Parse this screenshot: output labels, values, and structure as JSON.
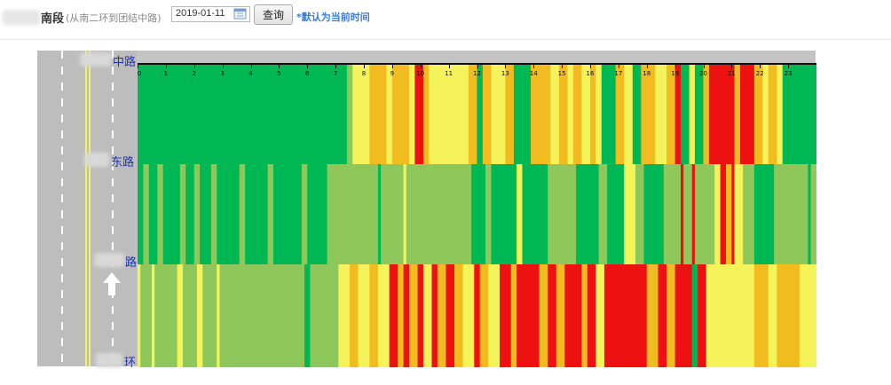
{
  "toolbar": {
    "title": "南段",
    "subtitle": "(从南二环到团结中路)",
    "date_value": "2019-01-11",
    "query_label": "查询",
    "hint": "*默认为当前时间"
  },
  "icons": {
    "calendar": "calendar-icon",
    "direction": "up-arrow-icon"
  },
  "road_labels": [
    "中路",
    "东路",
    "路",
    "环"
  ],
  "colors": {
    "dark_green": "#00b853",
    "light_green": "#8fc85a",
    "yellow": "#f4f45a",
    "orange": "#f0bc20",
    "red": "#ee1111"
  },
  "chart_data": {
    "type": "heatmap",
    "x_ticks": [
      "0",
      "1",
      "2",
      "3",
      "4",
      "5",
      "6",
      "7",
      "8",
      "9",
      "10",
      "11",
      "12",
      "13",
      "14",
      "15",
      "16",
      "17",
      "18",
      "19",
      "20",
      "21",
      "22",
      "23"
    ],
    "xlim": [
      0,
      24
    ],
    "rows": [
      {
        "segments": [
          [
            0,
            7.4,
            "dark_green"
          ],
          [
            7.4,
            7.6,
            "light_green"
          ],
          [
            7.6,
            8.2,
            "yellow"
          ],
          [
            8.2,
            8.8,
            "orange"
          ],
          [
            8.8,
            9.0,
            "yellow"
          ],
          [
            9.0,
            9.3,
            "orange"
          ],
          [
            9.3,
            9.6,
            "orange"
          ],
          [
            9.6,
            9.8,
            "yellow"
          ],
          [
            9.8,
            10.1,
            "red"
          ],
          [
            10.1,
            10.3,
            "orange"
          ],
          [
            10.3,
            11.7,
            "yellow"
          ],
          [
            11.7,
            12.0,
            "orange"
          ],
          [
            12.0,
            12.2,
            "dark_green"
          ],
          [
            12.2,
            12.5,
            "orange"
          ],
          [
            12.5,
            13.0,
            "yellow"
          ],
          [
            13.0,
            13.3,
            "orange"
          ],
          [
            13.3,
            13.9,
            "dark_green"
          ],
          [
            13.9,
            14.6,
            "orange"
          ],
          [
            14.6,
            14.9,
            "yellow"
          ],
          [
            14.9,
            15.2,
            "orange"
          ],
          [
            15.2,
            15.4,
            "yellow"
          ],
          [
            15.4,
            15.7,
            "orange"
          ],
          [
            15.7,
            16.0,
            "yellow"
          ],
          [
            16.0,
            16.2,
            "orange"
          ],
          [
            16.2,
            16.4,
            "yellow"
          ],
          [
            16.4,
            16.9,
            "dark_green"
          ],
          [
            16.9,
            17.2,
            "orange"
          ],
          [
            17.2,
            17.5,
            "yellow"
          ],
          [
            17.5,
            17.8,
            "dark_green"
          ],
          [
            17.8,
            18.3,
            "orange"
          ],
          [
            18.3,
            18.7,
            "yellow"
          ],
          [
            18.7,
            19.0,
            "orange"
          ],
          [
            19.0,
            19.2,
            "red"
          ],
          [
            19.2,
            19.5,
            "dark_green"
          ],
          [
            19.5,
            19.7,
            "yellow"
          ],
          [
            19.7,
            20.0,
            "dark_green"
          ],
          [
            20.0,
            20.2,
            "orange"
          ],
          [
            20.2,
            21.1,
            "red"
          ],
          [
            21.1,
            21.3,
            "orange"
          ],
          [
            21.3,
            21.8,
            "red"
          ],
          [
            21.8,
            22.1,
            "orange"
          ],
          [
            22.1,
            22.3,
            "yellow"
          ],
          [
            22.3,
            22.6,
            "orange"
          ],
          [
            22.6,
            22.8,
            "yellow"
          ],
          [
            22.8,
            24,
            "dark_green"
          ]
        ]
      },
      {
        "segments": [
          [
            0,
            0.2,
            "dark_green"
          ],
          [
            0.2,
            0.4,
            "light_green"
          ],
          [
            0.4,
            0.7,
            "dark_green"
          ],
          [
            0.7,
            0.9,
            "light_green"
          ],
          [
            0.9,
            1.5,
            "dark_green"
          ],
          [
            1.5,
            1.7,
            "light_green"
          ],
          [
            1.7,
            2.0,
            "dark_green"
          ],
          [
            2.0,
            2.2,
            "light_green"
          ],
          [
            2.2,
            2.6,
            "dark_green"
          ],
          [
            2.6,
            2.8,
            "light_green"
          ],
          [
            2.8,
            3.6,
            "dark_green"
          ],
          [
            3.6,
            3.8,
            "light_green"
          ],
          [
            3.8,
            4.6,
            "dark_green"
          ],
          [
            4.6,
            4.8,
            "light_green"
          ],
          [
            4.8,
            5.8,
            "dark_green"
          ],
          [
            5.8,
            6.0,
            "light_green"
          ],
          [
            6.0,
            6.7,
            "dark_green"
          ],
          [
            6.7,
            8.5,
            "light_green"
          ],
          [
            8.5,
            8.6,
            "dark_green"
          ],
          [
            8.6,
            9.4,
            "light_green"
          ],
          [
            9.4,
            9.5,
            "yellow"
          ],
          [
            9.5,
            11.8,
            "light_green"
          ],
          [
            11.8,
            12.3,
            "dark_green"
          ],
          [
            12.3,
            12.5,
            "light_green"
          ],
          [
            12.5,
            13.4,
            "dark_green"
          ],
          [
            13.4,
            13.6,
            "yellow"
          ],
          [
            13.6,
            14.5,
            "dark_green"
          ],
          [
            14.5,
            15.5,
            "light_green"
          ],
          [
            15.5,
            16.3,
            "dark_green"
          ],
          [
            16.3,
            16.6,
            "light_green"
          ],
          [
            16.6,
            17.2,
            "dark_green"
          ],
          [
            17.2,
            17.6,
            "yellow"
          ],
          [
            17.6,
            17.9,
            "light_green"
          ],
          [
            17.9,
            18.6,
            "dark_green"
          ],
          [
            18.6,
            19.2,
            "light_green"
          ],
          [
            19.2,
            19.3,
            "red"
          ],
          [
            19.3,
            19.6,
            "light_green"
          ],
          [
            19.6,
            19.7,
            "red"
          ],
          [
            19.7,
            20.4,
            "light_green"
          ],
          [
            20.4,
            20.6,
            "yellow"
          ],
          [
            20.6,
            20.8,
            "red"
          ],
          [
            20.8,
            21.0,
            "orange"
          ],
          [
            21.0,
            21.1,
            "red"
          ],
          [
            21.1,
            21.4,
            "yellow"
          ],
          [
            21.4,
            21.8,
            "light_green"
          ],
          [
            21.8,
            22.5,
            "dark_green"
          ],
          [
            22.5,
            23.7,
            "light_green"
          ],
          [
            23.7,
            23.8,
            "dark_green"
          ],
          [
            23.8,
            24,
            "light_green"
          ]
        ]
      },
      {
        "segments": [
          [
            0,
            0.1,
            "yellow"
          ],
          [
            0.1,
            0.5,
            "light_green"
          ],
          [
            0.5,
            0.6,
            "yellow"
          ],
          [
            0.6,
            1.4,
            "light_green"
          ],
          [
            1.4,
            1.6,
            "yellow"
          ],
          [
            1.6,
            2.1,
            "light_green"
          ],
          [
            2.1,
            2.3,
            "yellow"
          ],
          [
            2.3,
            2.8,
            "light_green"
          ],
          [
            2.8,
            2.9,
            "yellow"
          ],
          [
            2.9,
            5.9,
            "light_green"
          ],
          [
            5.9,
            6.1,
            "dark_green"
          ],
          [
            6.1,
            7.1,
            "light_green"
          ],
          [
            7.1,
            7.5,
            "yellow"
          ],
          [
            7.5,
            7.8,
            "orange"
          ],
          [
            7.8,
            8.2,
            "yellow"
          ],
          [
            8.2,
            8.5,
            "orange"
          ],
          [
            8.5,
            8.9,
            "yellow"
          ],
          [
            8.9,
            9.2,
            "red"
          ],
          [
            9.2,
            9.4,
            "orange"
          ],
          [
            9.4,
            9.6,
            "red"
          ],
          [
            9.6,
            9.9,
            "orange"
          ],
          [
            9.9,
            10.1,
            "red"
          ],
          [
            10.1,
            10.4,
            "yellow"
          ],
          [
            10.4,
            10.6,
            "red"
          ],
          [
            10.6,
            10.9,
            "orange"
          ],
          [
            10.9,
            11.2,
            "red"
          ],
          [
            11.2,
            11.5,
            "orange"
          ],
          [
            11.5,
            11.9,
            "yellow"
          ],
          [
            11.9,
            12.1,
            "red"
          ],
          [
            12.1,
            12.4,
            "orange"
          ],
          [
            12.4,
            12.8,
            "yellow"
          ],
          [
            12.8,
            13.2,
            "red"
          ],
          [
            13.2,
            13.4,
            "orange"
          ],
          [
            13.4,
            14.2,
            "red"
          ],
          [
            14.2,
            14.5,
            "orange"
          ],
          [
            14.5,
            14.8,
            "red"
          ],
          [
            14.8,
            15.1,
            "orange"
          ],
          [
            15.1,
            15.7,
            "red"
          ],
          [
            15.7,
            15.9,
            "orange"
          ],
          [
            15.9,
            16.2,
            "red"
          ],
          [
            16.2,
            16.5,
            "yellow"
          ],
          [
            16.5,
            18.0,
            "red"
          ],
          [
            18.0,
            18.4,
            "orange"
          ],
          [
            18.4,
            18.7,
            "red"
          ],
          [
            18.7,
            19.0,
            "orange"
          ],
          [
            19.0,
            19.6,
            "red"
          ],
          [
            19.6,
            19.8,
            "dark_green"
          ],
          [
            19.8,
            20.1,
            "red"
          ],
          [
            20.1,
            21.8,
            "yellow"
          ],
          [
            21.8,
            22.3,
            "orange"
          ],
          [
            22.3,
            22.6,
            "yellow"
          ],
          [
            22.6,
            23.0,
            "orange"
          ],
          [
            23.0,
            23.4,
            "orange"
          ],
          [
            23.4,
            24,
            "yellow"
          ]
        ]
      }
    ]
  }
}
